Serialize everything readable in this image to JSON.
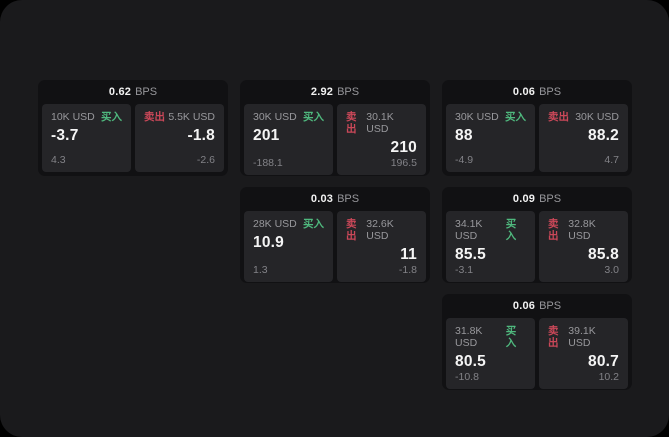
{
  "labels": {
    "buy": "买入",
    "sell": "卖出",
    "bps_unit": "BPS"
  },
  "colors": {
    "background": "#000000",
    "panel": "#1a1a1c",
    "card": "#111113",
    "tile": "#252528",
    "buy_green": "#4fb97e",
    "sell_red": "#cb4859",
    "value_white": "#f5f5f5",
    "label_gray": "#98989c"
  },
  "cards": [
    {
      "row": 1,
      "col": 1,
      "bps": "0.62",
      "buy": {
        "size": "10K USD",
        "value": "-3.7",
        "delta": "4.3"
      },
      "sell": {
        "size": "5.5K USD",
        "value": "-1.8",
        "delta": "-2.6"
      }
    },
    {
      "row": 1,
      "col": 2,
      "bps": "2.92",
      "buy": {
        "size": "30K USD",
        "value": "201",
        "delta": "-188.1"
      },
      "sell": {
        "size": "30.1K USD",
        "value": "210",
        "delta": "196.5"
      }
    },
    {
      "row": 1,
      "col": 3,
      "bps": "0.06",
      "buy": {
        "size": "30K USD",
        "value": "88",
        "delta": "-4.9"
      },
      "sell": {
        "size": "30K USD",
        "value": "88.2",
        "delta": "4.7"
      }
    },
    {
      "row": 2,
      "col": 2,
      "bps": "0.03",
      "buy": {
        "size": "28K USD",
        "value": "10.9",
        "delta": "1.3"
      },
      "sell": {
        "size": "32.6K USD",
        "value": "11",
        "delta": "-1.8"
      }
    },
    {
      "row": 2,
      "col": 3,
      "bps": "0.09",
      "buy": {
        "size": "34.1K USD",
        "value": "85.5",
        "delta": "-3.1"
      },
      "sell": {
        "size": "32.8K USD",
        "value": "85.8",
        "delta": "3.0"
      }
    },
    {
      "row": 3,
      "col": 3,
      "bps": "0.06",
      "buy": {
        "size": "31.8K USD",
        "value": "80.5",
        "delta": "-10.8"
      },
      "sell": {
        "size": "39.1K USD",
        "value": "80.7",
        "delta": "10.2"
      }
    }
  ]
}
